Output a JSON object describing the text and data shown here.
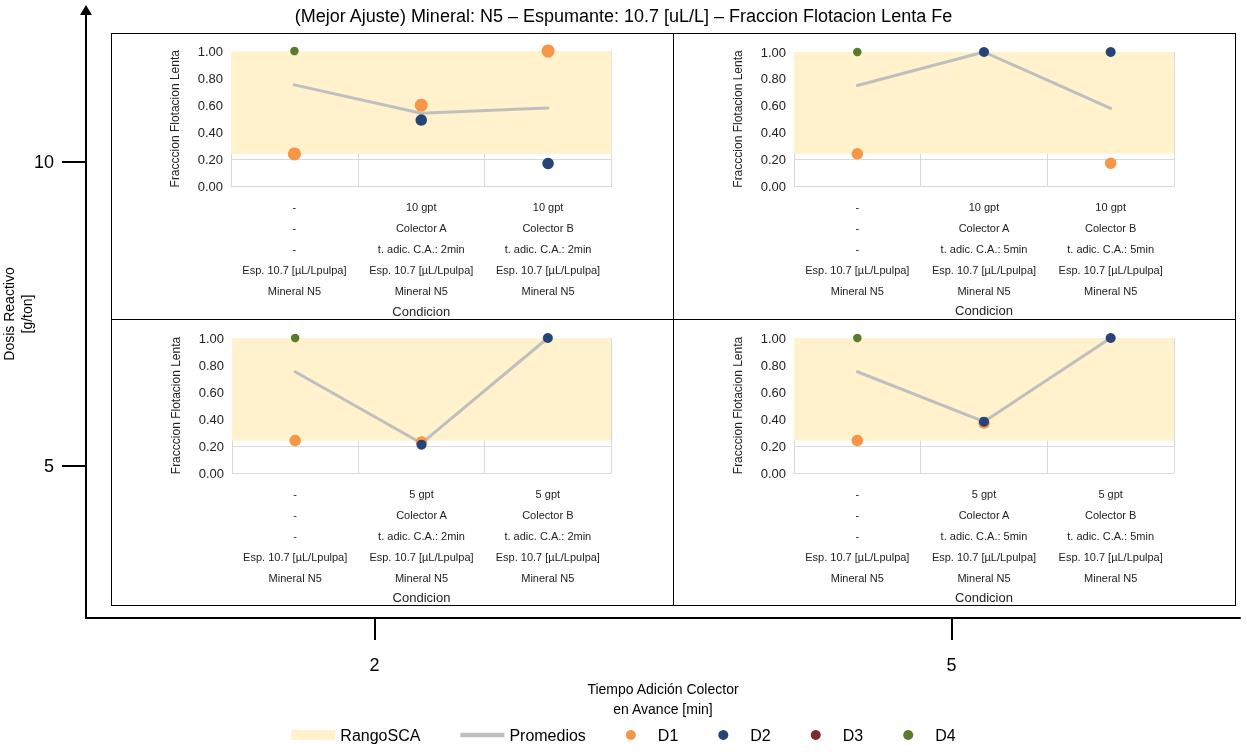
{
  "chart_data": [
    {
      "type": "other",
      "title": "(Mejor Ajuste) Mineral: N5 – Espumante: 10.7 [uL/L] – Fraccion Flotacion Lenta Fe",
      "xlabel": "Tiempo Adición Colector\nen Avance [min]",
      "ylabel": "Dosis Reactivo\n[g/ton]",
      "categories": [
        "2",
        "5"
      ],
      "y_categories": [
        "10",
        "5"
      ]
    },
    {
      "type": "scatter",
      "xlabel": "Condicion",
      "ylabel": "Fracccion Flotacion Lenta",
      "categories": [
        "-\n-\n-\nEsp. 10.7 [µL/Lpulpa]\nMineral N5",
        "10 gpt\nColector A\nt. adic. C.A.: 2min\nEsp. 10.7 [µL/Lpulpa]\nMineral N5",
        "10 gpt\nColector B\nt. adic. C.A.: 2min\nEsp. 10.7 [µL/Lpulpa]\nMineral N5"
      ],
      "ylim": [
        0,
        1
      ],
      "yticks": [
        {
          "value": 0,
          "label": "0.00"
        },
        {
          "value": 0.2,
          "label": "0.20"
        },
        {
          "value": 0.4,
          "label": "0.40"
        },
        {
          "value": 0.6,
          "label": "0.60"
        },
        {
          "value": 0.8,
          "label": "0.80"
        },
        {
          "value": 1,
          "label": "1.00"
        }
      ],
      "grid": true,
      "marker": "circle",
      "legend": "bottom",
      "bands": [
        {
          "axis": "y",
          "from": 0.24,
          "to": 1.0,
          "label": "RangoSCA",
          "color": "#fff2cc"
        }
      ],
      "series": [
        {
          "name": "Promedios",
          "type": "line",
          "marker": "none",
          "color": "#bfbfbf",
          "values": [
            0.75,
            0.54,
            0.58
          ]
        },
        {
          "name": "D1",
          "color": "#f79646",
          "values": [
            0.24,
            0.6,
            1.0
          ]
        },
        {
          "name": "D2",
          "color": "#264478",
          "values": [
            null,
            0.49,
            0.17
          ]
        },
        {
          "name": "D3",
          "color": "#7b2c2c",
          "values": [
            null,
            null,
            null
          ]
        },
        {
          "name": "D4",
          "color": "#5a7a2e",
          "values": [
            1.0,
            null,
            null
          ]
        }
      ]
    },
    {
      "type": "scatter",
      "xlabel": "Condicion",
      "ylabel": "Fracccion Flotacion Lenta",
      "categories": [
        "-\n-\n-\nEsp. 10.7 [µL/Lpulpa]\nMineral N5",
        "10 gpt\nColector A\nt. adic. C.A.: 5min\nEsp. 10.7 [µL/Lpulpa]\nMineral N5",
        "10 gpt\nColector B\nt. adic. C.A.: 5min\nEsp. 10.7 [µL/Lpulpa]\nMineral N5"
      ],
      "ylim": [
        0,
        1
      ],
      "yticks": [
        {
          "value": 0,
          "label": "0.00"
        },
        {
          "value": 0.2,
          "label": "0.20"
        },
        {
          "value": 0.4,
          "label": "0.40"
        },
        {
          "value": 0.6,
          "label": "0.60"
        },
        {
          "value": 0.8,
          "label": "0.80"
        },
        {
          "value": 1,
          "label": "1.00"
        }
      ],
      "grid": true,
      "marker": "circle",
      "bands": [
        {
          "axis": "y",
          "from": 0.24,
          "to": 1.0,
          "color": "#fff2cc"
        }
      ],
      "series": [
        {
          "type": "line",
          "marker": "none",
          "color": "#bfbfbf",
          "values": [
            0.75,
            1.0,
            0.58
          ]
        },
        {
          "color": "#f79646",
          "values": [
            0.24,
            null,
            0.17
          ]
        },
        {
          "color": "#264478",
          "values": [
            null,
            1.0,
            1.0
          ]
        },
        {
          "color": "#5a7a2e",
          "values": [
            1.0,
            null,
            null
          ]
        }
      ]
    },
    {
      "type": "scatter",
      "xlabel": "Condicion",
      "ylabel": "Fracccion Flotacion Lenta",
      "categories": [
        "-\n-\n-\nEsp. 10.7 [µL/Lpulpa]\nMineral N5",
        "5 gpt\nColector A\nt. adic. C.A.: 2min\nEsp. 10.7 [µL/Lpulpa]\nMineral N5",
        "5 gpt\nColector B\nt. adic. C.A.: 2min\nEsp. 10.7 [µL/Lpulpa]\nMineral N5"
      ],
      "ylim": [
        0,
        1
      ],
      "yticks": [
        {
          "value": 0,
          "label": "0.00"
        },
        {
          "value": 0.2,
          "label": "0.20"
        },
        {
          "value": 0.4,
          "label": "0.40"
        },
        {
          "value": 0.6,
          "label": "0.60"
        },
        {
          "value": 0.8,
          "label": "0.80"
        },
        {
          "value": 1,
          "label": "1.00"
        }
      ],
      "grid": true,
      "marker": "circle",
      "bands": [
        {
          "axis": "y",
          "from": 0.24,
          "to": 1.0,
          "color": "#fff2cc"
        }
      ],
      "series": [
        {
          "type": "line",
          "marker": "none",
          "color": "#bfbfbf",
          "values": [
            0.75,
            0.22,
            1.0
          ]
        },
        {
          "color": "#f79646",
          "values": [
            0.24,
            0.23,
            null
          ]
        },
        {
          "color": "#264478",
          "values": [
            null,
            0.21,
            1.0
          ]
        },
        {
          "color": "#5a7a2e",
          "values": [
            1.0,
            null,
            null
          ]
        }
      ]
    },
    {
      "type": "scatter",
      "xlabel": "Condicion",
      "ylabel": "Fracccion Flotacion Lenta",
      "categories": [
        "-\n-\n-\nEsp. 10.7 [µL/Lpulpa]\nMineral N5",
        "5 gpt\nColector A\nt. adic. C.A.: 5min\nEsp. 10.7 [µL/Lpulpa]\nMineral N5",
        "5 gpt\nColector B\nt. adic. C.A.: 5min\nEsp. 10.7 [µL/Lpulpa]\nMineral N5"
      ],
      "ylim": [
        0,
        1
      ],
      "yticks": [
        {
          "value": 0,
          "label": "0.00"
        },
        {
          "value": 0.2,
          "label": "0.20"
        },
        {
          "value": 0.4,
          "label": "0.40"
        },
        {
          "value": 0.6,
          "label": "0.60"
        },
        {
          "value": 0.8,
          "label": "0.80"
        },
        {
          "value": 1,
          "label": "1.00"
        }
      ],
      "grid": true,
      "marker": "circle",
      "bands": [
        {
          "axis": "y",
          "from": 0.24,
          "to": 1.0,
          "color": "#fff2cc"
        }
      ],
      "series": [
        {
          "type": "line",
          "marker": "none",
          "color": "#bfbfbf",
          "values": [
            0.75,
            0.38,
            1.0
          ]
        },
        {
          "color": "#f79646",
          "values": [
            0.24,
            0.37,
            null
          ]
        },
        {
          "color": "#264478",
          "values": [
            null,
            0.38,
            1.0
          ]
        },
        {
          "color": "#5a7a2e",
          "values": [
            1.0,
            null,
            null
          ]
        }
      ]
    }
  ]
}
